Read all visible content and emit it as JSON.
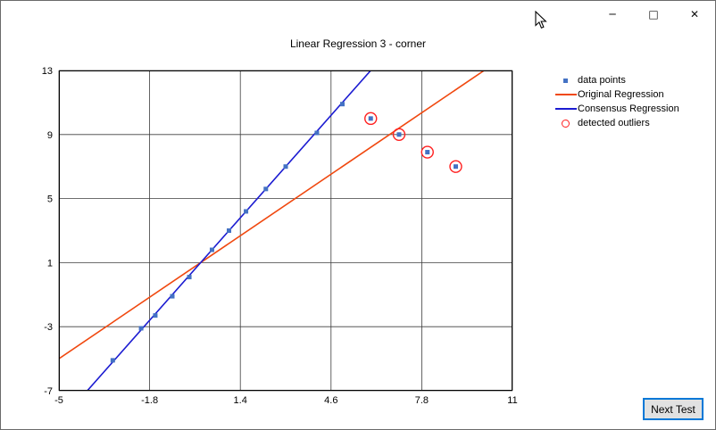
{
  "window": {
    "controls": {
      "minimize": "─",
      "maximize": "□",
      "close": "✕"
    }
  },
  "chart_data": {
    "type": "scatter",
    "title": "Linear Regression 3 - corner",
    "xlabel": "",
    "ylabel": "",
    "xlim": [
      -5,
      11
    ],
    "ylim": [
      -7,
      13
    ],
    "x_ticks": [
      "-5",
      "-1.8",
      "1.4",
      "4.6",
      "7.8",
      "11"
    ],
    "x_tick_values": [
      -5,
      -1.8,
      1.4,
      4.6,
      7.8,
      11
    ],
    "y_ticks": [
      "13",
      "9",
      "5",
      "1",
      "-3",
      "-7"
    ],
    "y_tick_values": [
      13,
      9,
      5,
      1,
      -3,
      -7
    ],
    "grid": true,
    "legend_position": "right-top-outside",
    "legend": [
      {
        "label": "data points",
        "marker": "square",
        "color": "#4472c4"
      },
      {
        "label": "Original Regression",
        "marker": "line",
        "color": "#f0480f"
      },
      {
        "label": "Consensus Regression",
        "marker": "line",
        "color": "#1b1bd1"
      },
      {
        "label": "detected outliers",
        "marker": "open-circle",
        "color": "#ff2020"
      }
    ],
    "series": [
      {
        "name": "data points",
        "type": "scatter",
        "marker": "square",
        "color": "#4472c4",
        "points": [
          [
            -3.1,
            -5.1
          ],
          [
            -2.1,
            -3.1
          ],
          [
            -1.6,
            -2.3
          ],
          [
            -1.0,
            -1.1
          ],
          [
            -0.4,
            0.1
          ],
          [
            0.4,
            1.8
          ],
          [
            1.0,
            3.0
          ],
          [
            1.6,
            4.2
          ],
          [
            2.3,
            5.6
          ],
          [
            3.0,
            7.0
          ],
          [
            4.1,
            9.1
          ],
          [
            5.0,
            10.9
          ],
          [
            6.0,
            10.0
          ],
          [
            7.0,
            9.0
          ],
          [
            8.0,
            7.9
          ],
          [
            9.0,
            7.0
          ]
        ]
      },
      {
        "name": "Original Regression",
        "type": "line",
        "color": "#f0480f",
        "slope": 1.2,
        "intercept": 1.0
      },
      {
        "name": "Consensus Regression",
        "type": "line",
        "color": "#1b1bd1",
        "slope": 2.0,
        "intercept": 1.0
      },
      {
        "name": "detected outliers",
        "type": "scatter",
        "marker": "open-circle",
        "color": "#ff2020",
        "points": [
          [
            6.0,
            10.0
          ],
          [
            7.0,
            9.0
          ],
          [
            8.0,
            7.9
          ],
          [
            9.0,
            7.0
          ]
        ]
      }
    ]
  },
  "footer": {
    "next_test_label": "Next Test"
  }
}
